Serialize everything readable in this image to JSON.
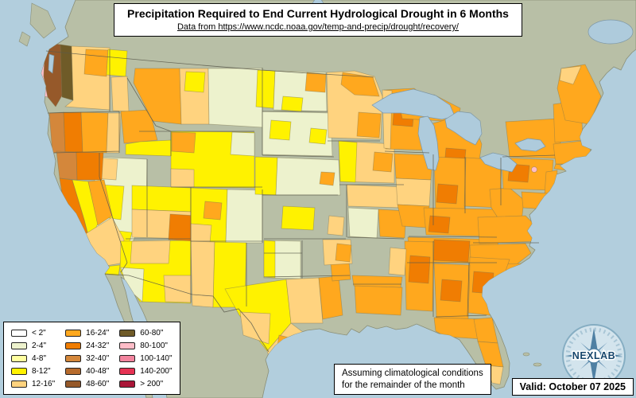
{
  "title": {
    "line1": "Precipitation Required to End Current Hydrological Drought in 6 Months",
    "line2": "Data from https://www.ncdc.noaa.gov/temp-and-precip/drought/recovery/"
  },
  "legend": {
    "items": [
      {
        "label": "< 2\"",
        "color": "#ffffff"
      },
      {
        "label": "2-4\"",
        "color": "#edf2cd"
      },
      {
        "label": "4-8\"",
        "color": "#ffffa0"
      },
      {
        "label": "8-12\"",
        "color": "#fff200"
      },
      {
        "label": "12-16\"",
        "color": "#ffd37f"
      },
      {
        "label": "16-24\"",
        "color": "#ffa81e"
      },
      {
        "label": "24-32\"",
        "color": "#f07d02"
      },
      {
        "label": "32-40\"",
        "color": "#d4873b"
      },
      {
        "label": "40-48\"",
        "color": "#b76b2c"
      },
      {
        "label": "48-60\"",
        "color": "#96592a"
      },
      {
        "label": "60-80\"",
        "color": "#6f5b28"
      },
      {
        "label": "80-100\"",
        "color": "#ffbdc8"
      },
      {
        "label": "100-140\"",
        "color": "#f2849e"
      },
      {
        "label": "140-200\"",
        "color": "#e63253"
      },
      {
        "label": "> 200\"",
        "color": "#aa1638"
      }
    ]
  },
  "footnote": {
    "line1": "Assuming climatological conditions",
    "line2": "for the remainder of the month"
  },
  "valid": {
    "text": "Valid: October 07 2025"
  },
  "logo": {
    "text": "NEXLAB"
  },
  "map": {
    "ocean_color": "#b2cedd",
    "land_color": "#b8bfa6",
    "lake_color": "#aecbdc",
    "border_color": "#5a5a4c"
  }
}
